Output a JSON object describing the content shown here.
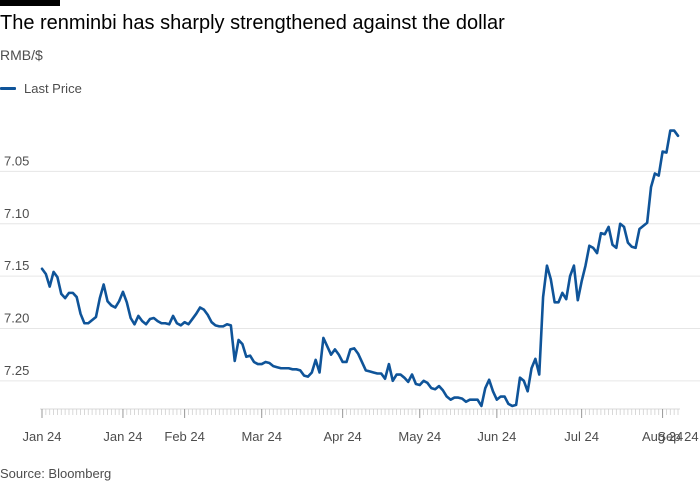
{
  "chart_data": {
    "type": "line",
    "title": "The renminbi has sharply strengthened against the dollar",
    "subtitle": "RMB/$",
    "xlabel": "",
    "ylabel": "",
    "y_reversed": true,
    "ylim": [
      7.02,
      7.275
    ],
    "y_ticks": [
      7.05,
      7.1,
      7.15,
      7.2,
      7.25
    ],
    "y_tick_labels": [
      "7.05",
      "7.10",
      "7.15",
      "7.20",
      "7.25"
    ],
    "x_tick_labels": [
      "Jan 24",
      "Jan 24",
      "Feb 24",
      "Mar 24",
      "Apr 24",
      "May 24",
      "Jun 24",
      "Jul 24",
      "Aug 24",
      "Sep 24"
    ],
    "x_tick_index": [
      0,
      21,
      37,
      57,
      78,
      98,
      118,
      140,
      161,
      181
    ],
    "grid": true,
    "legend_position": "top-left",
    "series": [
      {
        "name": "Last Price",
        "color": "#0f5499",
        "values": [
          7.143,
          7.148,
          7.16,
          7.146,
          7.151,
          7.167,
          7.171,
          7.166,
          7.166,
          7.17,
          7.186,
          7.195,
          7.195,
          7.192,
          7.189,
          7.171,
          7.158,
          7.174,
          7.178,
          7.18,
          7.174,
          7.165,
          7.175,
          7.19,
          7.196,
          7.188,
          7.193,
          7.196,
          7.191,
          7.19,
          7.193,
          7.195,
          7.195,
          7.196,
          7.188,
          7.195,
          7.197,
          7.194,
          7.196,
          7.191,
          7.186,
          7.18,
          7.182,
          7.187,
          7.194,
          7.197,
          7.198,
          7.198,
          7.196,
          7.197,
          7.231,
          7.211,
          7.215,
          7.227,
          7.226,
          7.232,
          7.234,
          7.234,
          7.232,
          7.233,
          7.236,
          7.237,
          7.238,
          7.238,
          7.238,
          7.239,
          7.239,
          7.24,
          7.245,
          7.246,
          7.242,
          7.23,
          7.242,
          7.209,
          7.217,
          7.225,
          7.22,
          7.225,
          7.232,
          7.232,
          7.22,
          7.219,
          7.224,
          7.232,
          7.24,
          7.241,
          7.242,
          7.243,
          7.243,
          7.248,
          7.234,
          7.25,
          7.244,
          7.244,
          7.247,
          7.251,
          7.244,
          7.253,
          7.254,
          7.25,
          7.252,
          7.257,
          7.258,
          7.255,
          7.259,
          7.265,
          7.268,
          7.266,
          7.266,
          7.267,
          7.27,
          7.268,
          7.268,
          7.268,
          7.274,
          7.257,
          7.249,
          7.26,
          7.268,
          7.265,
          7.265,
          7.272,
          7.274,
          7.273,
          7.247,
          7.25,
          7.26,
          7.238,
          7.229,
          7.244,
          7.17,
          7.14,
          7.153,
          7.175,
          7.175,
          7.166,
          7.172,
          7.15,
          7.14,
          7.173,
          7.155,
          7.14,
          7.121,
          7.123,
          7.128,
          7.109,
          7.11,
          7.103,
          7.12,
          7.123,
          7.1,
          7.103,
          7.118,
          7.122,
          7.123,
          7.105,
          7.102,
          7.099,
          7.065,
          7.052,
          7.054,
          7.031,
          7.032,
          7.011,
          7.011,
          7.016
        ]
      }
    ]
  },
  "footer": {
    "source": "Source: Bloomberg"
  }
}
